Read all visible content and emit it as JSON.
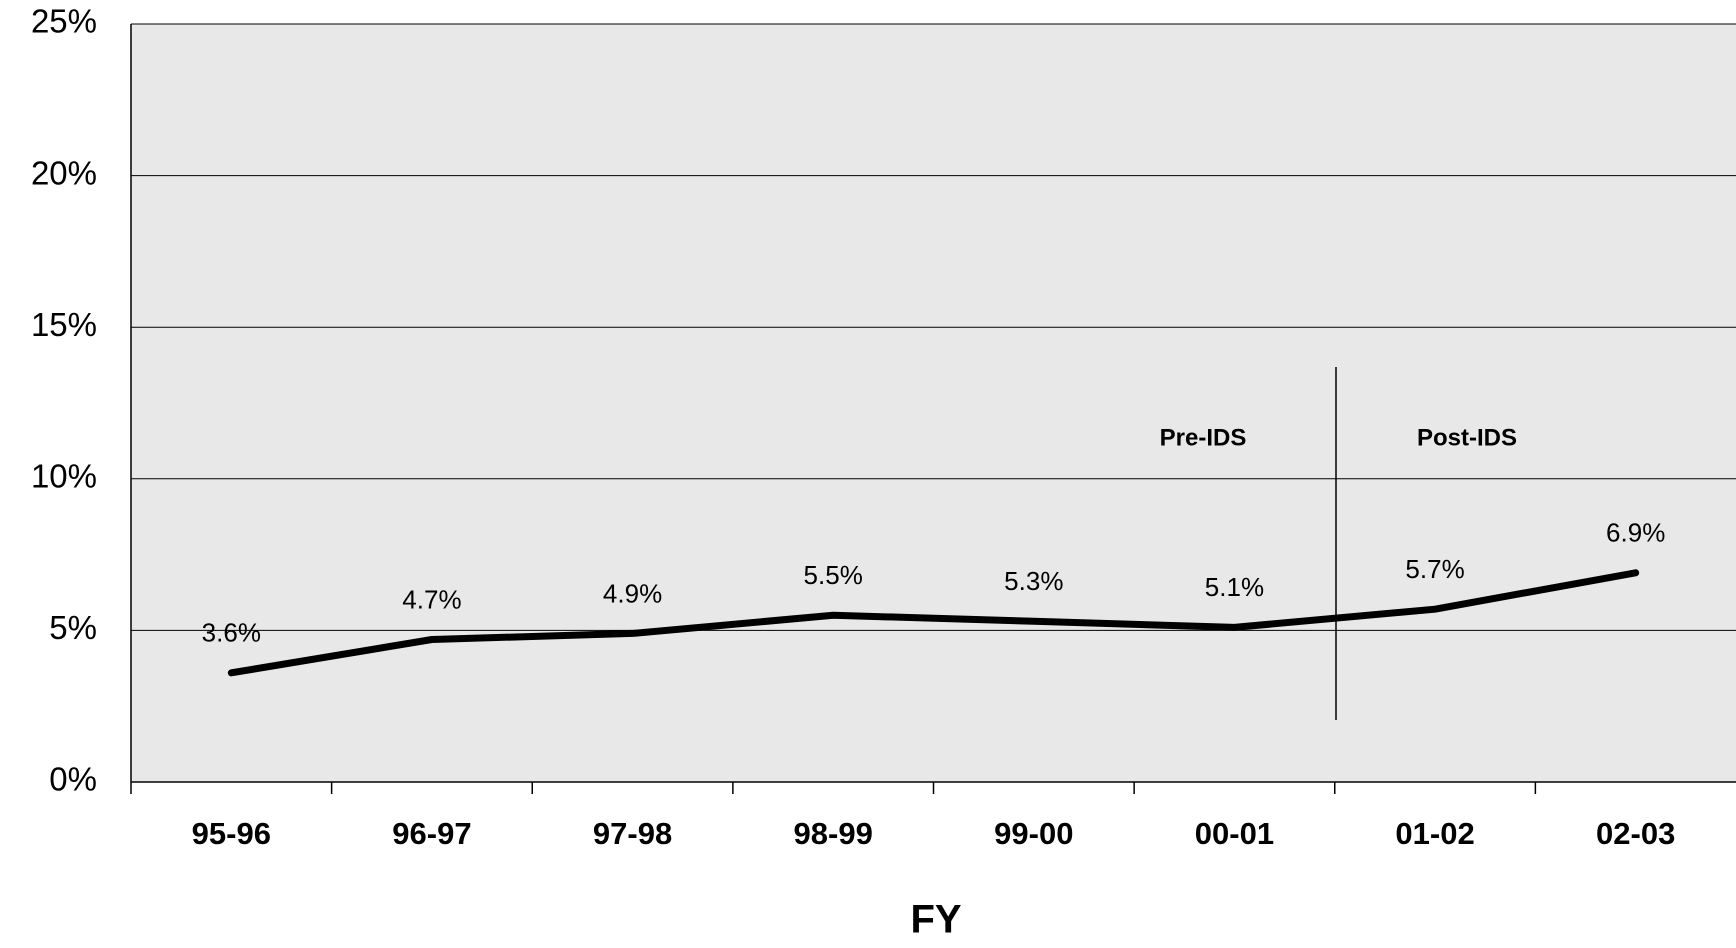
{
  "chart_data": {
    "type": "line",
    "x_label": "FY",
    "categories": [
      "95-96",
      "96-97",
      "97-98",
      "98-99",
      "99-00",
      "00-01",
      "01-02",
      "02-03"
    ],
    "series": [
      {
        "name": null,
        "color": "#000000",
        "values": [
          3.6,
          4.7,
          4.9,
          5.5,
          5.3,
          5.1,
          5.7,
          6.9
        ],
        "value_labels": [
          "3.6%",
          "4.7%",
          "4.9%",
          "5.5%",
          "5.3%",
          "5.1%",
          "5.7%",
          "6.9%"
        ]
      }
    ],
    "ylim": [
      0,
      25
    ],
    "yticks": [
      {
        "value": 0,
        "label": "0%"
      },
      {
        "value": 5,
        "label": "5%"
      },
      {
        "value": 10,
        "label": "10%"
      },
      {
        "value": 15,
        "label": "15%"
      },
      {
        "value": 20,
        "label": "20%"
      },
      {
        "value": 25,
        "label": "25%"
      }
    ],
    "grid": true,
    "annotations": [
      "Pre-IDS",
      "Post-IDS"
    ]
  }
}
